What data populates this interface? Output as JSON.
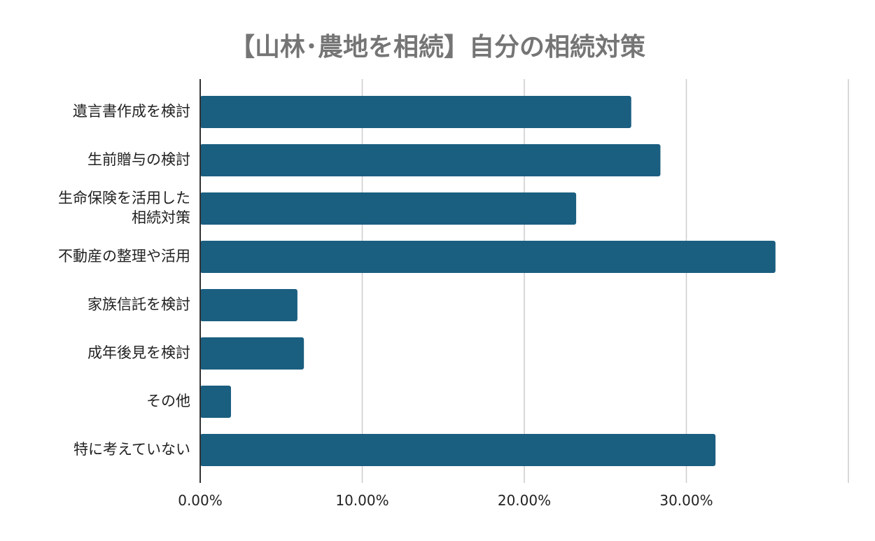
{
  "chart_data": {
    "type": "bar",
    "orientation": "horizontal",
    "title": "【山林･農地を相続】自分の相続対策",
    "xlabel": "",
    "ylabel": "",
    "categories": [
      "遺言書作成を検討",
      "生前贈与の検討",
      "生命保険を活用した\n相続対策",
      "不動産の整理や活用",
      "家族信託を検討",
      "成年後見を検討",
      "その他",
      "特に考えていない"
    ],
    "values": [
      26.6,
      28.4,
      23.2,
      35.5,
      6.0,
      6.4,
      1.9,
      31.8
    ],
    "xlim": [
      0,
      40
    ],
    "x_ticks": [
      0,
      10,
      20,
      30
    ],
    "x_tick_labels": [
      "0.00%",
      "10.00%",
      "20.00%",
      "30.00%"
    ],
    "grid": true,
    "legend": "none",
    "colors": {
      "bar": "#1a5e80",
      "grid": "#cccccc",
      "axis": "#333333",
      "title": "#757575",
      "label": "#222222"
    }
  }
}
